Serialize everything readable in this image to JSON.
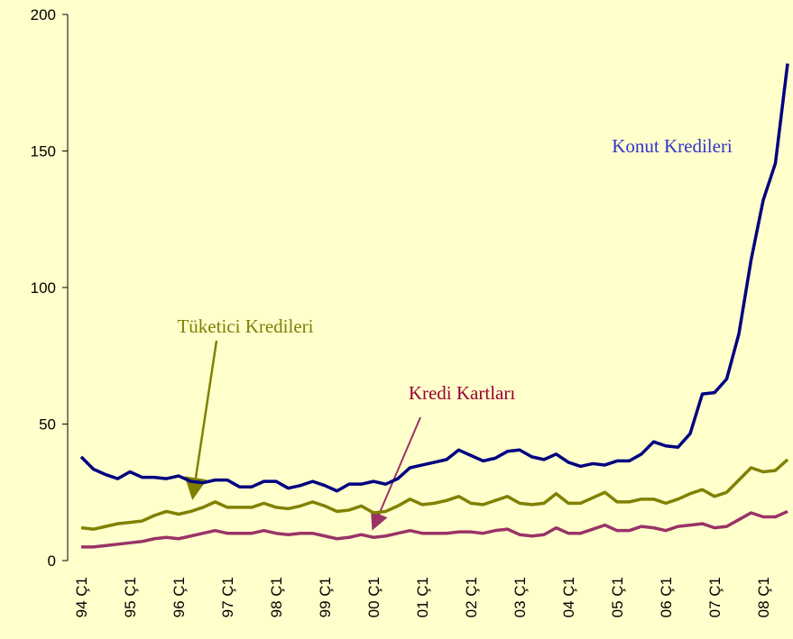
{
  "chart_data": {
    "type": "line",
    "categories": [
      "94 Ç1",
      null,
      null,
      null,
      "95 Ç1",
      null,
      null,
      null,
      "96 Ç1",
      null,
      null,
      null,
      "97 Ç1",
      null,
      null,
      null,
      "98 Ç1",
      null,
      null,
      null,
      "99 Ç1",
      null,
      null,
      null,
      "00 Ç1",
      null,
      null,
      null,
      "01 Ç1",
      null,
      null,
      null,
      "02 Ç1",
      null,
      null,
      null,
      "03 Ç1",
      null,
      null,
      null,
      "04 Ç1",
      null,
      null,
      null,
      "05 Ç1",
      null,
      null,
      null,
      "06 Ç1",
      null,
      null,
      null,
      "07 Ç1",
      null,
      null,
      null,
      "08 Ç1",
      null,
      null
    ],
    "series": [
      {
        "name": "Konut Kredileri",
        "color": "#000080",
        "values": [
          38,
          33.5,
          31.5,
          30,
          32.5,
          30.5,
          30.5,
          30,
          31,
          29,
          28.5,
          29.5,
          29.5,
          27,
          27,
          29,
          29,
          26.5,
          27.5,
          29,
          27.5,
          25.5,
          28,
          28,
          29,
          28,
          30,
          34,
          35,
          36,
          37,
          40.5,
          38.5,
          36.5,
          37.5,
          40,
          40.5,
          38,
          37,
          39,
          36,
          34.5,
          35.5,
          35,
          36.5,
          36.5,
          39,
          43.5,
          42,
          41.5,
          46.5,
          61,
          61.5,
          66.5,
          83,
          110,
          132,
          145.5,
          182
        ]
      },
      {
        "name": "Tüketici Kredileri",
        "color": "#808000",
        "values": [
          12,
          11.5,
          12.5,
          13.5,
          14,
          14.5,
          16.5,
          18,
          17,
          18,
          19.5,
          21.5,
          19.5,
          19.5,
          19.5,
          21,
          19.5,
          19,
          20,
          21.5,
          20,
          18,
          18.5,
          20,
          17.5,
          18,
          20,
          22.5,
          20.5,
          21,
          22,
          23.5,
          21,
          20.5,
          22,
          23.5,
          21,
          20.5,
          21,
          24.5,
          21,
          21,
          23,
          25,
          21.5,
          21.5,
          22.5,
          22.5,
          21,
          22.5,
          24.5,
          26,
          23.5,
          25,
          29.5,
          34,
          32.5,
          33,
          37
        ]
      },
      {
        "name": "Kredi Kartları",
        "color": "#993366",
        "values": [
          5,
          5,
          5.5,
          6,
          6.5,
          7,
          8,
          8.5,
          8,
          9,
          10,
          11,
          10,
          10,
          10,
          11,
          10,
          9.5,
          10,
          10,
          9,
          8,
          8.5,
          9.5,
          8.5,
          9,
          10,
          11,
          10,
          10,
          10,
          10.5,
          10.5,
          10,
          11,
          11.5,
          9.5,
          9,
          9.5,
          12,
          10,
          10,
          11.5,
          13,
          11,
          11,
          12.5,
          12,
          11,
          12.5,
          13,
          13.5,
          12,
          12.5,
          15,
          17.5,
          16,
          16,
          18
        ]
      }
    ],
    "ylim": [
      0,
      200
    ],
    "yticks": [
      0,
      50,
      100,
      150,
      200
    ]
  }
}
